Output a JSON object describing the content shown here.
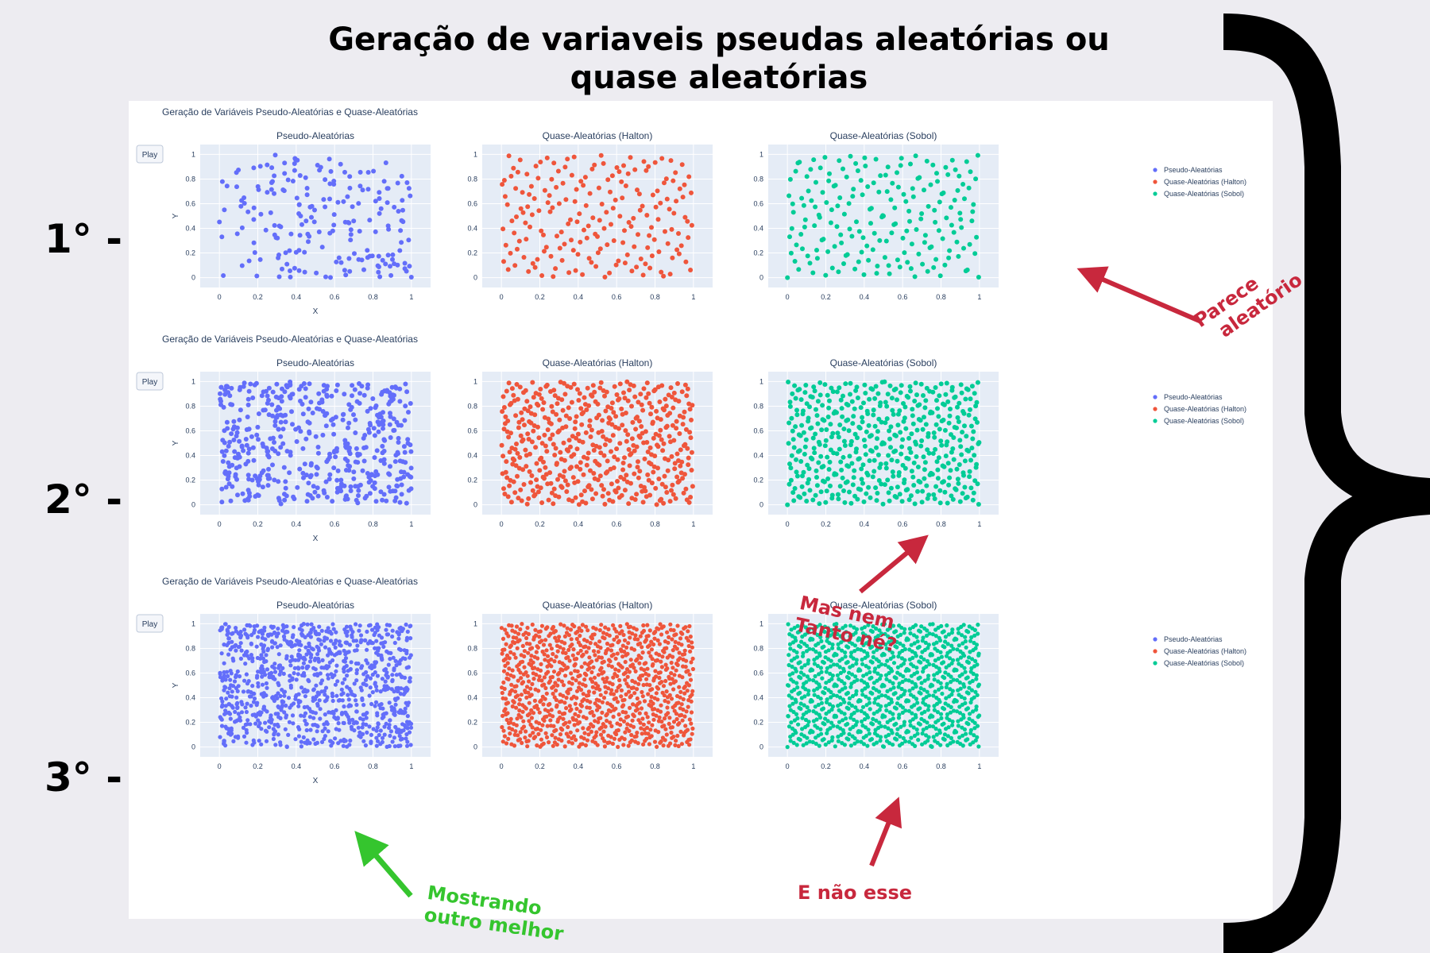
{
  "page": {
    "title_line1": "Geração de variaveis pseudas aleatórias ou",
    "title_line2": "quase aleatórias",
    "row_labels": [
      "1° -",
      "2° -",
      "3° -"
    ]
  },
  "annotations": {
    "row1": [
      "Parece",
      "aleatório"
    ],
    "row2": [
      "Mas nem",
      "Tanto né?"
    ],
    "row3_red": "E não esse",
    "row3_green": [
      "Mostrando",
      "outro melhor"
    ]
  },
  "colors": {
    "pseudo": "#636efa",
    "halton": "#ef553b",
    "sobol": "#00cc96",
    "plot_bg": "#e5ecf6",
    "annot_red": "#c8283d",
    "annot_green": "#35c52e"
  },
  "chart_data": [
    {
      "type": "scatter",
      "title": "Geração de Variáveis Pseudo-Aleatórias e Quase-Aleatórias",
      "play_label": "Play",
      "subplot_titles": [
        "Pseudo-Aleatórias",
        "Quase-Aleatórias (Halton)",
        "Quase-Aleatórias (Sobol)"
      ],
      "xlabel": "X",
      "ylabel": "Y",
      "xlim": [
        -0.1,
        1.1
      ],
      "ylim": [
        -0.08,
        1.08
      ],
      "xticks": [
        "0",
        "0.2",
        "0.4",
        "0.6",
        "0.8",
        "1"
      ],
      "yticks": [
        "0",
        "0.2",
        "0.4",
        "0.6",
        "0.8",
        "1"
      ],
      "legend": [
        "Pseudo-Aleatórias",
        "Quase-Aleatórias (Halton)",
        "Quase-Aleatórias (Sobol)"
      ],
      "legend_position": "right",
      "points_per_series": 200
    },
    {
      "type": "scatter",
      "title": "Geração de Variáveis Pseudo-Aleatórias e Quase-Aleatórias",
      "play_label": "Play",
      "subplot_titles": [
        "Pseudo-Aleatórias",
        "Quase-Aleatórias (Halton)",
        "Quase-Aleatórias (Sobol)"
      ],
      "xlabel": "X",
      "ylabel": "Y",
      "xlim": [
        -0.1,
        1.1
      ],
      "ylim": [
        -0.08,
        1.08
      ],
      "xticks": [
        "0",
        "0.2",
        "0.4",
        "0.6",
        "0.8",
        "1"
      ],
      "yticks": [
        "0",
        "0.2",
        "0.4",
        "0.6",
        "0.8",
        "1"
      ],
      "legend": [
        "Pseudo-Aleatórias",
        "Quase-Aleatórias (Halton)",
        "Quase-Aleatórias (Sobol)"
      ],
      "legend_position": "right",
      "points_per_series": 500
    },
    {
      "type": "scatter",
      "title": "Geração de Variáveis Pseudo-Aleatórias e Quase-Aleatórias",
      "play_label": "Play",
      "subplot_titles": [
        "Pseudo-Aleatórias",
        "Quase-Aleatórias (Halton)",
        "Quase-Aleatórias (Sobol)"
      ],
      "xlabel": "X",
      "ylabel": "Y",
      "xlim": [
        -0.1,
        1.1
      ],
      "ylim": [
        -0.08,
        1.08
      ],
      "xticks": [
        "0",
        "0.2",
        "0.4",
        "0.6",
        "0.8",
        "1"
      ],
      "yticks": [
        "0",
        "0.2",
        "0.4",
        "0.6",
        "0.8",
        "1"
      ],
      "legend": [
        "Pseudo-Aleatórias",
        "Quase-Aleatórias (Halton)",
        "Quase-Aleatórias (Sobol)"
      ],
      "legend_position": "right",
      "points_per_series": 1000
    }
  ]
}
